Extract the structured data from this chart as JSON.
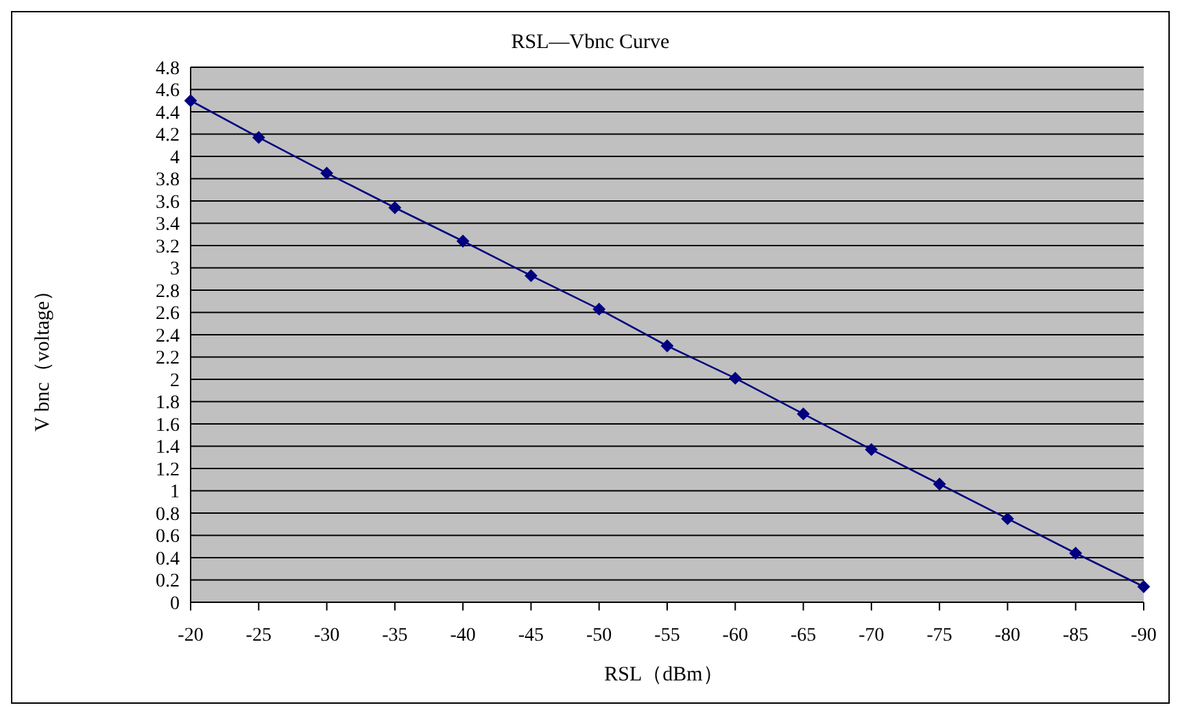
{
  "chart_data": {
    "type": "line",
    "title": "RSL—Vbnc Curve",
    "xlabel": "RSL（dBm）",
    "ylabel": "V bnc（voltage）",
    "categories": [
      "-20",
      "-25",
      "-30",
      "-35",
      "-40",
      "-45",
      "-50",
      "-55",
      "-60",
      "-65",
      "-70",
      "-75",
      "-80",
      "-85",
      "-90"
    ],
    "series": [
      {
        "color": "#000080",
        "values": [
          4.5,
          4.17,
          3.85,
          3.54,
          3.24,
          2.93,
          2.63,
          2.3,
          2.01,
          1.69,
          1.37,
          1.06,
          0.75,
          0.44,
          0.14
        ]
      }
    ],
    "ylim": [
      0,
      4.8
    ],
    "yticks": [
      0,
      0.2,
      0.4,
      0.6,
      0.8,
      1,
      1.2,
      1.4,
      1.6,
      1.8,
      2,
      2.2,
      2.4,
      2.6,
      2.8,
      3,
      3.2,
      3.4,
      3.6,
      3.8,
      4,
      4.2,
      4.4,
      4.6,
      4.8
    ],
    "grid": "y",
    "legend": false,
    "marker": "diamond",
    "line_style": "solid"
  }
}
